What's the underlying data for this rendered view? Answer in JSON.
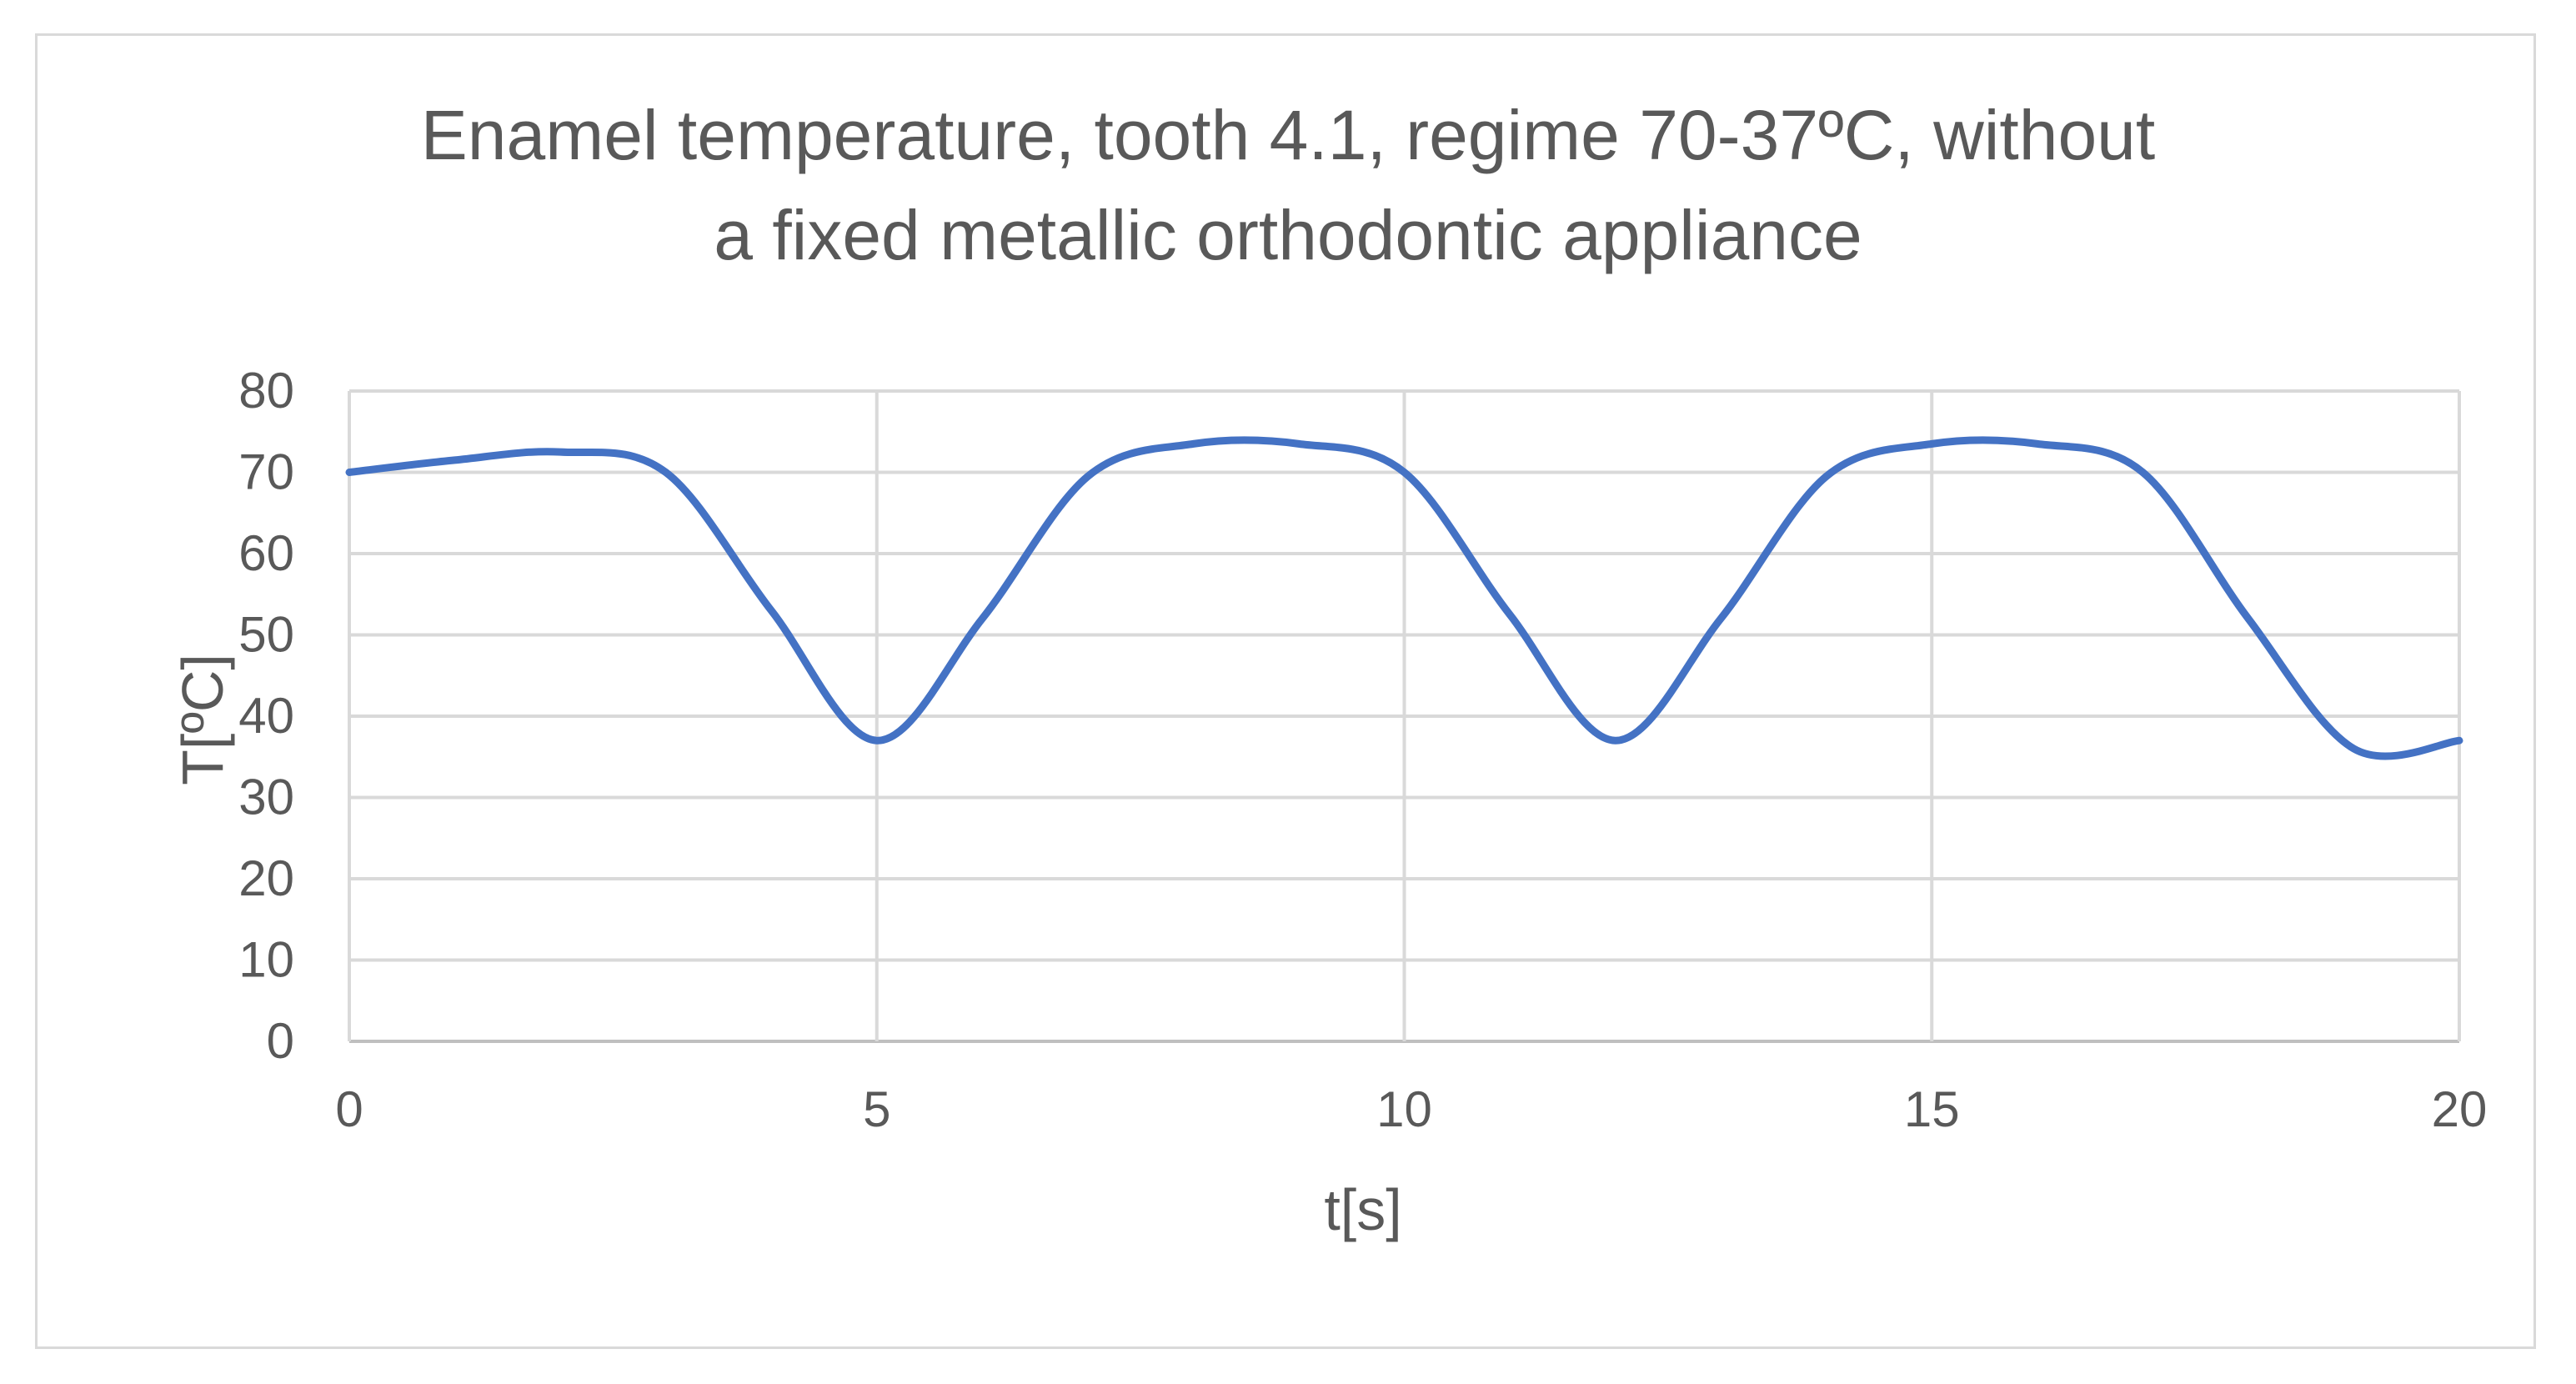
{
  "chart_data": {
    "type": "line",
    "title_lines": [
      "Enamel temperature, tooth 4.1, regime 70-37ºC, without",
      "a fixed metallic orthodontic appliance"
    ],
    "xlabel": "t[s]",
    "ylabel": "T[ºC]",
    "xlim": [
      0,
      20
    ],
    "ylim": [
      0,
      80
    ],
    "x_ticks": [
      0,
      5,
      10,
      15,
      20
    ],
    "y_ticks": [
      0,
      10,
      20,
      30,
      40,
      50,
      60,
      70,
      80
    ],
    "grid": true,
    "series": [
      {
        "color": "#4472c4",
        "x": [
          0,
          1,
          2,
          3,
          4,
          5,
          6,
          7,
          8,
          9,
          10,
          11,
          12,
          13,
          14,
          15,
          16,
          17,
          18,
          19,
          20
        ],
        "y": [
          70,
          71.5,
          72.5,
          70,
          53,
          37,
          52,
          69.5,
          73.5,
          73.5,
          70,
          52.5,
          37,
          52,
          69.5,
          73.5,
          73.5,
          70,
          52,
          36,
          37
        ]
      }
    ]
  }
}
